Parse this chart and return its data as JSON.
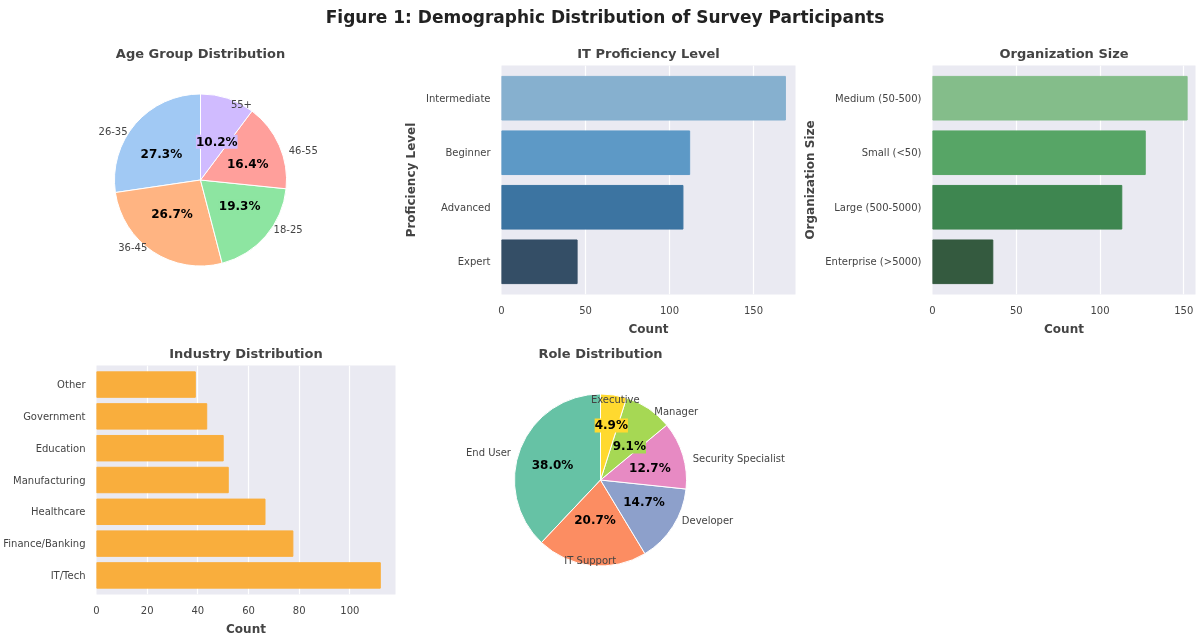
{
  "chart_data": [
    {
      "type": "other",
      "title": "Figure 1: Demographic Distribution of Survey Participants"
    },
    {
      "type": "pie",
      "title": "Age Group Distribution",
      "categories": [
        "26-35",
        "36-45",
        "18-25",
        "46-55",
        "55+"
      ],
      "values": [
        27.3,
        26.7,
        19.3,
        16.4,
        10.2
      ],
      "colors": [
        "#a1c9f4",
        "#ffb482",
        "#8de5a1",
        "#ff9f9b",
        "#d0bbff"
      ],
      "value_labels": [
        "27.3%",
        "26.7%",
        "19.3%",
        "16.4%",
        "10.2%"
      ]
    },
    {
      "type": "bar",
      "orientation": "horizontal",
      "title": "IT Proficiency Level",
      "xlabel": "Count",
      "ylabel": "Proficiency Level",
      "categories": [
        "Intermediate",
        "Beginner",
        "Advanced",
        "Expert"
      ],
      "values": [
        169,
        112,
        108,
        45
      ],
      "colors": [
        "#86b0cf",
        "#5d99c6",
        "#3c74a1",
        "#344e66"
      ],
      "xlim": [
        0,
        175
      ],
      "xticks": [
        0,
        50,
        100,
        150
      ],
      "grid": "x"
    },
    {
      "type": "bar",
      "orientation": "horizontal",
      "title": "Organization Size",
      "xlabel": "Count",
      "ylabel": "Organization Size",
      "categories": [
        "Medium (50-500)",
        "Small (<50)",
        "Large (500-5000)",
        "Enterprise (>5000)"
      ],
      "values": [
        152,
        127,
        113,
        36
      ],
      "colors": [
        "#84bd8a",
        "#57a566",
        "#3e8650",
        "#345a3f"
      ],
      "xlim": [
        0,
        157
      ],
      "xticks": [
        0,
        50,
        100,
        150
      ],
      "grid": "x"
    },
    {
      "type": "bar",
      "orientation": "horizontal",
      "title": "Industry Distribution",
      "xlabel": "Count",
      "categories": [
        "Other",
        "Government",
        "Education",
        "Manufacturing",
        "Healthcare",
        "Finance/Banking",
        "IT/Tech"
      ],
      "values": [
        39,
        43.5,
        50,
        52,
        66.5,
        77.5,
        112
      ],
      "color": "#f9ae3d",
      "xlim": [
        0,
        118
      ],
      "xticks": [
        0,
        20,
        40,
        60,
        80,
        100
      ],
      "grid": "x"
    },
    {
      "type": "pie",
      "title": "Role Distribution",
      "categories": [
        "End User",
        "IT Support",
        "Developer",
        "Security Specialist",
        "Manager",
        "Executive"
      ],
      "values": [
        38.0,
        20.7,
        14.7,
        12.7,
        9.1,
        4.9
      ],
      "colors": [
        "#66c2a5",
        "#fc8d62",
        "#8da0cb",
        "#e78ac3",
        "#a6d854",
        "#ffd92f"
      ],
      "value_labels": [
        "38.0%",
        "20.7%",
        "14.7%",
        "12.7%",
        "9.1%",
        "4.9%"
      ]
    }
  ]
}
